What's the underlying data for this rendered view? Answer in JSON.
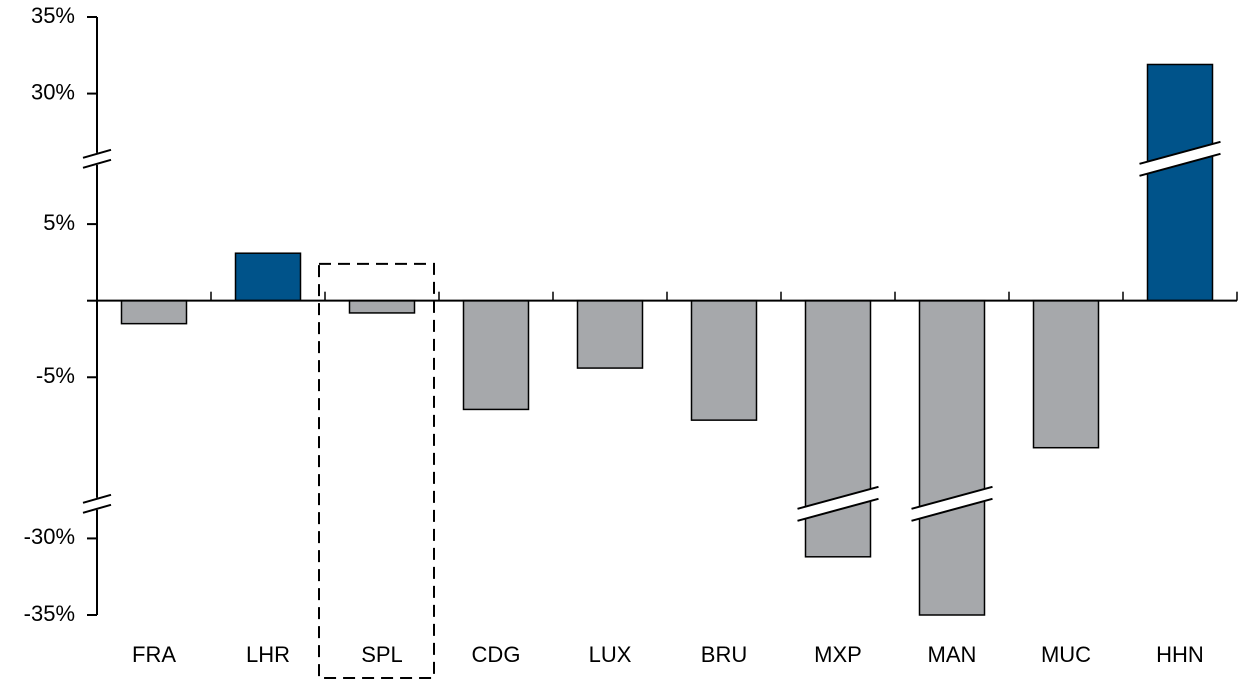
{
  "chart_data": {
    "type": "bar",
    "categories": [
      "FRA",
      "LHR",
      "SPL",
      "CDG",
      "LUX",
      "BRU",
      "MXP",
      "MAN",
      "MUC",
      "HHN"
    ],
    "values": [
      -1.5,
      3.1,
      -0.8,
      -7.1,
      -4.4,
      -7.8,
      -31.2,
      -35,
      -9.6,
      31.9
    ],
    "colors": [
      "#a6a8ab",
      "#00538a",
      "#a6a8ab",
      "#a6a8ab",
      "#a6a8ab",
      "#a6a8ab",
      "#a6a8ab",
      "#a6a8ab",
      "#a6a8ab",
      "#00538a"
    ],
    "ylim": [
      -35,
      35
    ],
    "yticks": [
      {
        "value": 35,
        "label": "35%"
      },
      {
        "value": 30,
        "label": "30%"
      },
      {
        "value": 5,
        "label": "5%"
      },
      {
        "value": -5,
        "label": "-5%"
      },
      {
        "value": -30,
        "label": "-30%"
      },
      {
        "value": -35,
        "label": "-35%"
      }
    ],
    "y_breaks": [
      [
        -28,
        -13
      ],
      [
        9,
        26
      ]
    ],
    "highlight_index": 2
  }
}
